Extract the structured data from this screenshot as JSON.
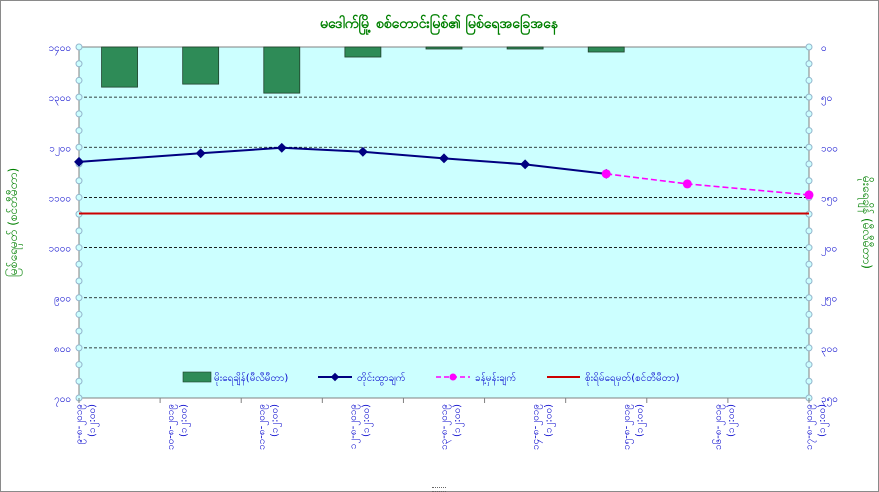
{
  "chart_data": {
    "type": "bar+line",
    "title": "မဒေါက်မြို့ စစ်တောင်းမြစ်၏ မြစ်ရေအခြေအနေ",
    "ylabel_left": "မြစ်ရေမှတ် (စင်တီမီတာ)",
    "ylabel_right": "မိုးရေချိန် (မီလီမီတာ)",
    "y_left": {
      "min": 700,
      "max": 1400,
      "ticks": [
        "၇၀၀",
        "၈၀၀",
        "၉၀၀",
        "၁၀၀၀",
        "၁၁၀၀",
        "၁၂၀၀",
        "၁၃၀၀",
        "၁၄၀၀"
      ]
    },
    "y_right": {
      "min": 0,
      "max": 350,
      "inverted": true,
      "ticks": [
        "၀",
        "၅၀",
        "၁၀၀",
        "၁၅၀",
        "၂၀၀",
        "၂၅၀",
        "၃၀၀",
        "၃၅၀"
      ]
    },
    "categories": [
      [
        "၉-၈-၂၀၁၉",
        "(၁၂:၀၀)"
      ],
      [
        "၁၀-၈-၂၀၁၉",
        "(၁၂:၀၀)"
      ],
      [
        "၁၁-၈-၂၀၁၉",
        "(၁၂:၀၀)"
      ],
      [
        "၁၂-၈-၂၀၁၉",
        "(၁၂:၀၀)"
      ],
      [
        "၁၃-၈-၂၀၁၉",
        "(၁၂:၀၀)"
      ],
      [
        "၁၄-၈-၂၀၁၉",
        "(၁၂:၀၀)"
      ],
      [
        "၁၅-၈-၂၀၁၉",
        "(၁၂:၀၀)"
      ],
      [
        "၁၆-၈-၂၀၁၉",
        "(၁၂:၀၀)"
      ],
      [
        "၁၇-၈-၂၀၁၉",
        "(၁၂:၀၀)"
      ]
    ],
    "series": [
      {
        "name": "မိုးရေချိန်(မီလီမီတာ)",
        "kind": "bar",
        "axis": "right",
        "color": "#2e8b57",
        "values": [
          40,
          37,
          46,
          10,
          2,
          2,
          5,
          null,
          null
        ]
      },
      {
        "name": "တိုင်းထွာချက်",
        "kind": "line",
        "axis": "left",
        "color": "#000080",
        "values": [
          1171,
          1188,
          1199,
          1191,
          1178,
          1166,
          1147,
          null,
          null
        ]
      },
      {
        "name": "ခန့်မှန်းချက်",
        "kind": "dashed-line",
        "axis": "left",
        "color": "#ff00ff",
        "values": [
          null,
          null,
          null,
          null,
          null,
          null,
          1147,
          1127,
          1105
        ]
      },
      {
        "name": "စိုးရိမ်ရေမှတ်(စင်တီမီတာ)",
        "kind": "hline",
        "axis": "left",
        "color": "#cc0000",
        "value": 1068
      }
    ],
    "grid": true,
    "legend_position": "bottom-center"
  },
  "colors": {
    "plot_bg": "#ccffff",
    "title": "#008000",
    "axis_text": "#0000cc",
    "marker": "#93b5cc"
  }
}
